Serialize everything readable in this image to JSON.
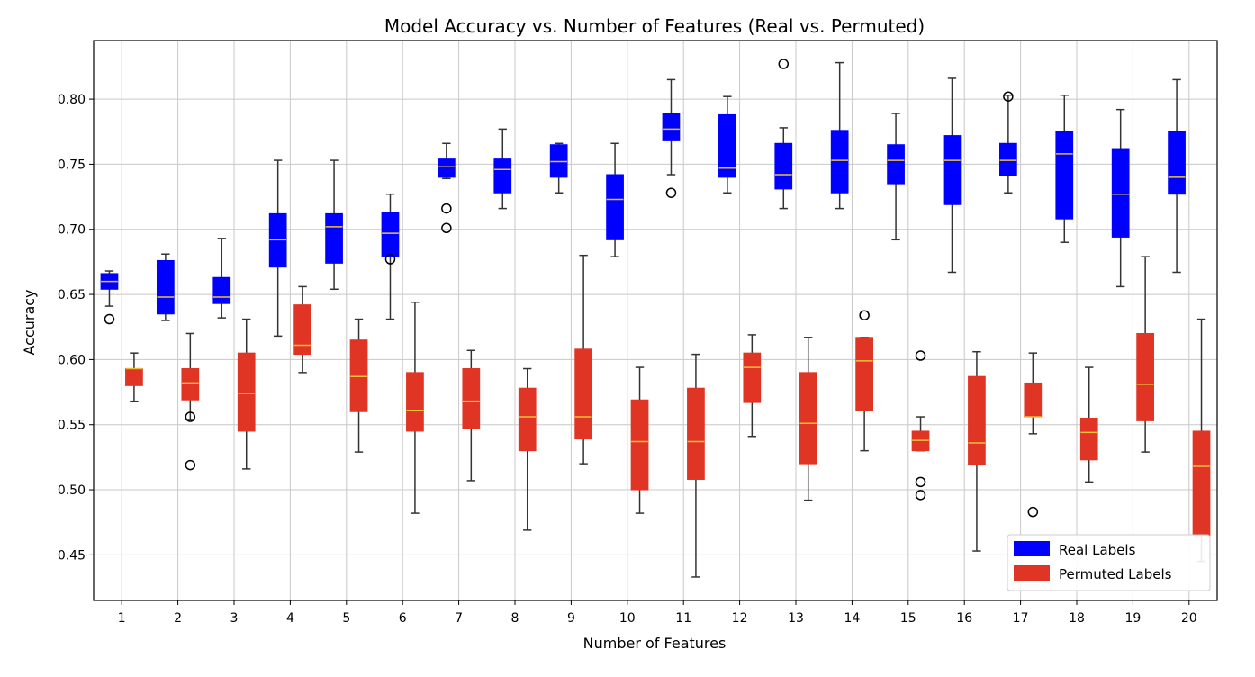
{
  "chart_data": {
    "type": "boxplot",
    "title": "Model Accuracy vs. Number of Features (Real vs. Permuted)",
    "xlabel": "Number of Features",
    "ylabel": "Accuracy",
    "ylim": [
      0.415,
      0.845
    ],
    "yticks": [
      0.45,
      0.5,
      0.55,
      0.6,
      0.65,
      0.7,
      0.75,
      0.8
    ],
    "categories": [
      "1",
      "2",
      "3",
      "4",
      "5",
      "6",
      "7",
      "8",
      "9",
      "10",
      "11",
      "12",
      "13",
      "14",
      "15",
      "16",
      "17",
      "18",
      "19",
      "20"
    ],
    "grid": true,
    "legend_position": "lower-right",
    "colors": {
      "real": "#0000ff",
      "permuted": "#e03424",
      "median": "#e8c23a",
      "whisker": "#333333"
    },
    "series": [
      {
        "name": "Real Labels",
        "boxes": [
          {
            "whislo": 0.641,
            "q1": 0.654,
            "med": 0.66,
            "q3": 0.666,
            "whishi": 0.668,
            "fliers": [
              0.631
            ]
          },
          {
            "whislo": 0.63,
            "q1": 0.635,
            "med": 0.648,
            "q3": 0.676,
            "whishi": 0.681,
            "fliers": []
          },
          {
            "whislo": 0.632,
            "q1": 0.643,
            "med": 0.648,
            "q3": 0.663,
            "whishi": 0.693,
            "fliers": []
          },
          {
            "whislo": 0.618,
            "q1": 0.671,
            "med": 0.692,
            "q3": 0.712,
            "whishi": 0.753,
            "fliers": []
          },
          {
            "whislo": 0.654,
            "q1": 0.674,
            "med": 0.702,
            "q3": 0.712,
            "whishi": 0.753,
            "fliers": []
          },
          {
            "whislo": 0.631,
            "q1": 0.679,
            "med": 0.697,
            "q3": 0.713,
            "whishi": 0.727,
            "fliers": [
              0.677
            ]
          },
          {
            "whislo": 0.739,
            "q1": 0.74,
            "med": 0.748,
            "q3": 0.754,
            "whishi": 0.766,
            "fliers": [
              0.716,
              0.701
            ]
          },
          {
            "whislo": 0.716,
            "q1": 0.728,
            "med": 0.746,
            "q3": 0.754,
            "whishi": 0.777,
            "fliers": []
          },
          {
            "whislo": 0.728,
            "q1": 0.74,
            "med": 0.752,
            "q3": 0.765,
            "whishi": 0.766,
            "fliers": []
          },
          {
            "whislo": 0.679,
            "q1": 0.692,
            "med": 0.723,
            "q3": 0.742,
            "whishi": 0.766,
            "fliers": []
          },
          {
            "whislo": 0.742,
            "q1": 0.768,
            "med": 0.777,
            "q3": 0.789,
            "whishi": 0.815,
            "fliers": [
              0.728
            ]
          },
          {
            "whislo": 0.728,
            "q1": 0.74,
            "med": 0.747,
            "q3": 0.788,
            "whishi": 0.802,
            "fliers": []
          },
          {
            "whislo": 0.716,
            "q1": 0.731,
            "med": 0.742,
            "q3": 0.766,
            "whishi": 0.778,
            "fliers": [
              0.827
            ]
          },
          {
            "whislo": 0.716,
            "q1": 0.728,
            "med": 0.753,
            "q3": 0.776,
            "whishi": 0.828,
            "fliers": []
          },
          {
            "whislo": 0.692,
            "q1": 0.735,
            "med": 0.753,
            "q3": 0.765,
            "whishi": 0.789,
            "fliers": []
          },
          {
            "whislo": 0.667,
            "q1": 0.719,
            "med": 0.753,
            "q3": 0.772,
            "whishi": 0.816,
            "fliers": []
          },
          {
            "whislo": 0.728,
            "q1": 0.741,
            "med": 0.753,
            "q3": 0.766,
            "whishi": 0.803,
            "fliers": [
              0.802
            ]
          },
          {
            "whislo": 0.69,
            "q1": 0.708,
            "med": 0.758,
            "q3": 0.775,
            "whishi": 0.803,
            "fliers": []
          },
          {
            "whislo": 0.656,
            "q1": 0.694,
            "med": 0.727,
            "q3": 0.762,
            "whishi": 0.792,
            "fliers": []
          },
          {
            "whislo": 0.667,
            "q1": 0.727,
            "med": 0.74,
            "q3": 0.775,
            "whishi": 0.815,
            "fliers": []
          }
        ]
      },
      {
        "name": "Permuted Labels",
        "boxes": [
          {
            "whislo": 0.568,
            "q1": 0.58,
            "med": 0.593,
            "q3": 0.593,
            "whishi": 0.605,
            "fliers": []
          },
          {
            "whislo": 0.554,
            "q1": 0.569,
            "med": 0.582,
            "q3": 0.593,
            "whishi": 0.62,
            "fliers": [
              0.556,
              0.519
            ]
          },
          {
            "whislo": 0.516,
            "q1": 0.545,
            "med": 0.574,
            "q3": 0.605,
            "whishi": 0.631,
            "fliers": []
          },
          {
            "whislo": 0.59,
            "q1": 0.604,
            "med": 0.611,
            "q3": 0.642,
            "whishi": 0.656,
            "fliers": []
          },
          {
            "whislo": 0.529,
            "q1": 0.56,
            "med": 0.587,
            "q3": 0.615,
            "whishi": 0.631,
            "fliers": []
          },
          {
            "whislo": 0.482,
            "q1": 0.545,
            "med": 0.561,
            "q3": 0.59,
            "whishi": 0.644,
            "fliers": []
          },
          {
            "whislo": 0.507,
            "q1": 0.547,
            "med": 0.568,
            "q3": 0.593,
            "whishi": 0.607,
            "fliers": []
          },
          {
            "whislo": 0.469,
            "q1": 0.53,
            "med": 0.556,
            "q3": 0.578,
            "whishi": 0.593,
            "fliers": []
          },
          {
            "whislo": 0.52,
            "q1": 0.539,
            "med": 0.556,
            "q3": 0.608,
            "whishi": 0.68,
            "fliers": []
          },
          {
            "whislo": 0.482,
            "q1": 0.5,
            "med": 0.537,
            "q3": 0.569,
            "whishi": 0.594,
            "fliers": []
          },
          {
            "whislo": 0.433,
            "q1": 0.508,
            "med": 0.537,
            "q3": 0.578,
            "whishi": 0.604,
            "fliers": []
          },
          {
            "whislo": 0.541,
            "q1": 0.567,
            "med": 0.594,
            "q3": 0.605,
            "whishi": 0.619,
            "fliers": []
          },
          {
            "whislo": 0.492,
            "q1": 0.52,
            "med": 0.551,
            "q3": 0.59,
            "whishi": 0.617,
            "fliers": []
          },
          {
            "whislo": 0.53,
            "q1": 0.561,
            "med": 0.599,
            "q3": 0.617,
            "whishi": 0.617,
            "fliers": [
              0.634
            ]
          },
          {
            "whislo": 0.53,
            "q1": 0.53,
            "med": 0.538,
            "q3": 0.545,
            "whishi": 0.556,
            "fliers": [
              0.603,
              0.506,
              0.496
            ]
          },
          {
            "whislo": 0.453,
            "q1": 0.519,
            "med": 0.536,
            "q3": 0.587,
            "whishi": 0.606,
            "fliers": []
          },
          {
            "whislo": 0.543,
            "q1": 0.556,
            "med": 0.556,
            "q3": 0.582,
            "whishi": 0.605,
            "fliers": [
              0.483
            ]
          },
          {
            "whislo": 0.506,
            "q1": 0.523,
            "med": 0.544,
            "q3": 0.555,
            "whishi": 0.594,
            "fliers": []
          },
          {
            "whislo": 0.529,
            "q1": 0.553,
            "med": 0.581,
            "q3": 0.62,
            "whishi": 0.679,
            "fliers": []
          },
          {
            "whislo": 0.445,
            "q1": 0.465,
            "med": 0.518,
            "q3": 0.545,
            "whishi": 0.631,
            "fliers": []
          }
        ]
      }
    ]
  }
}
